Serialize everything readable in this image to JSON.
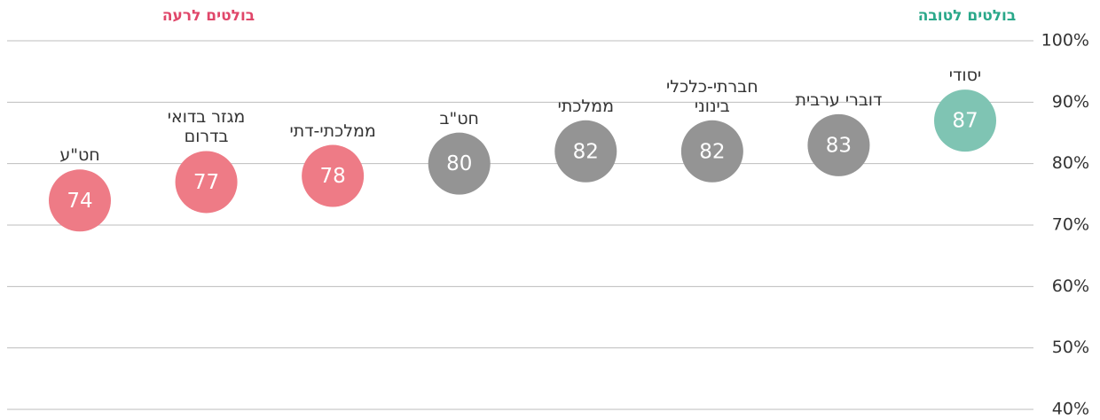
{
  "chart_data": {
    "type": "dot",
    "annotations": [
      {
        "text": "בולטים לטובה",
        "color": "#2aa88a"
      },
      {
        "text": "בולטים לרעה",
        "color": "#e0476a"
      }
    ],
    "categories": [
      "יסודי",
      "דוברי ערבית",
      "חברתי-כלכלי בינוני",
      "ממלכתי",
      "חט\"ב",
      "ממלכתי-דתי",
      "מגזר בדואי בדרום",
      "חט\"ע"
    ],
    "values": [
      87,
      83,
      82,
      82,
      80,
      78,
      77,
      74
    ],
    "colors": [
      "#7fc4b3",
      "#949494",
      "#949494",
      "#949494",
      "#949494",
      "#ee7b86",
      "#ee7b86",
      "#ee7b86"
    ],
    "ylim": [
      40,
      100
    ],
    "yticks": [
      {
        "value": 40,
        "label": "40%"
      },
      {
        "value": 50,
        "label": "50%"
      },
      {
        "value": 60,
        "label": "60%"
      },
      {
        "value": 70,
        "label": "70%"
      },
      {
        "value": 80,
        "label": "80%"
      },
      {
        "value": 90,
        "label": "90%"
      },
      {
        "value": 100,
        "label": "100%"
      }
    ],
    "grid": true
  }
}
